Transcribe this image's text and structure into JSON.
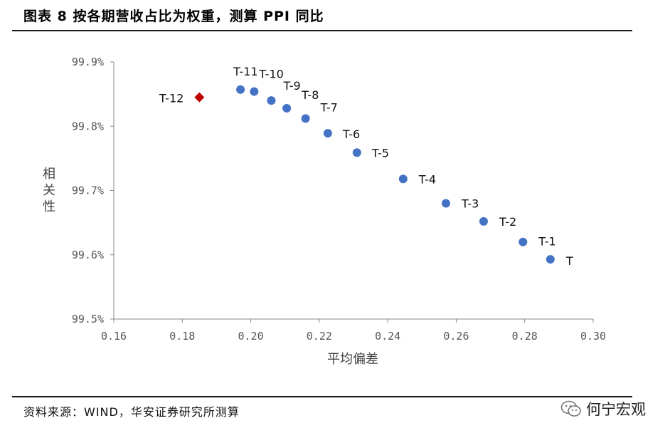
{
  "header": {
    "title": "图表 8 按各期营收占比为权重，测算 PPI 同比"
  },
  "footer": {
    "source": "资料来源：WIND，华安证券研究所测算",
    "watermark": "何宁宏观"
  },
  "colors": {
    "point": "#4472C4",
    "highlight": "#C00000",
    "axis": "#888888"
  },
  "chart_data": {
    "type": "scatter",
    "title": "",
    "xlabel": "平均偏差",
    "ylabel": "相关性",
    "xlim": [
      0.16,
      0.3
    ],
    "ylim": [
      99.5,
      99.9
    ],
    "xticks": [
      0.16,
      0.18,
      0.2,
      0.22,
      0.24,
      0.26,
      0.28,
      0.3
    ],
    "xtick_labels": [
      "0.16",
      "0.18",
      "0.20",
      "0.22",
      "0.24",
      "0.26",
      "0.28",
      "0.30"
    ],
    "yticks": [
      99.5,
      99.6,
      99.7,
      99.8,
      99.9
    ],
    "ytick_labels": [
      "99.5%",
      "99.6%",
      "99.7%",
      "99.8%",
      "99.9%"
    ],
    "grid": false,
    "points": [
      {
        "label": "T-12",
        "x": 0.185,
        "y": 99.845,
        "marker": "diamond"
      },
      {
        "label": "T-11",
        "x": 0.197,
        "y": 99.857,
        "marker": "circle"
      },
      {
        "label": "T-10",
        "x": 0.201,
        "y": 99.854,
        "marker": "circle"
      },
      {
        "label": "T-9",
        "x": 0.206,
        "y": 99.84,
        "marker": "circle"
      },
      {
        "label": "T-8",
        "x": 0.2105,
        "y": 99.828,
        "marker": "circle"
      },
      {
        "label": "T-7",
        "x": 0.216,
        "y": 99.812,
        "marker": "circle"
      },
      {
        "label": "T-6",
        "x": 0.2225,
        "y": 99.789,
        "marker": "circle"
      },
      {
        "label": "T-5",
        "x": 0.231,
        "y": 99.759,
        "marker": "circle"
      },
      {
        "label": "T-4",
        "x": 0.2445,
        "y": 99.718,
        "marker": "circle"
      },
      {
        "label": "T-3",
        "x": 0.257,
        "y": 99.68,
        "marker": "circle"
      },
      {
        "label": "T-2",
        "x": 0.268,
        "y": 99.652,
        "marker": "circle"
      },
      {
        "label": "T-1",
        "x": 0.2795,
        "y": 99.62,
        "marker": "circle"
      },
      {
        "label": "T",
        "x": 0.2875,
        "y": 99.593,
        "marker": "circle"
      }
    ]
  }
}
